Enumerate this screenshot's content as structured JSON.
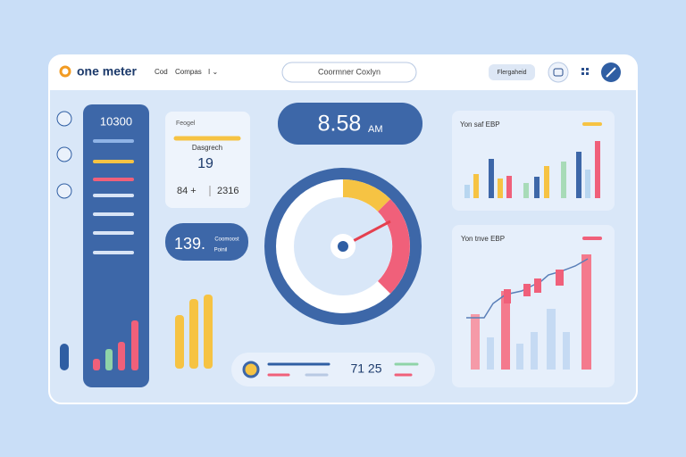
{
  "header": {
    "brand": "one meter",
    "nav": [
      "Cod",
      "Compas",
      "I ⌄"
    ],
    "search": "Coormner Coxlyn",
    "button": "Flergaheid"
  },
  "sidebar": {
    "title": "10300"
  },
  "summary_card": {
    "label": "Feogel",
    "subtitle": "Dasgrech",
    "value": "19",
    "left": "84 +",
    "right": "2316"
  },
  "stat_pill": {
    "value": "139.",
    "label": "Coomoost",
    "sublabel": "Poinil"
  },
  "clock": {
    "time": "8.58",
    "suffix": "AM"
  },
  "bottom_bar": {
    "value": "71 25"
  },
  "cards": [
    {
      "title": "Yon saf EBP"
    },
    {
      "title": "Yon tnve EBP"
    }
  ]
}
